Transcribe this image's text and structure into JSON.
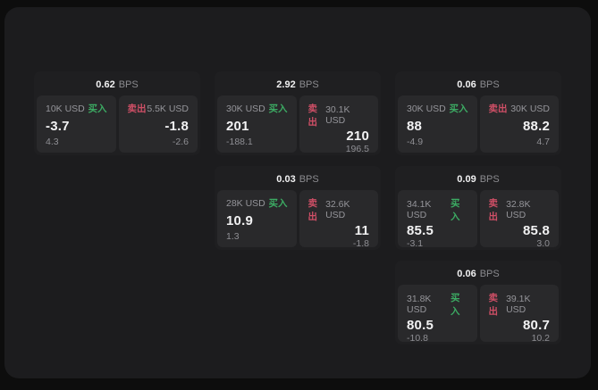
{
  "labels": {
    "bps_unit": "BPS",
    "buy": "买入",
    "sell": "卖出"
  },
  "colors": {
    "buy": "#3cab63",
    "sell": "#cf4f66",
    "surface": "#1c1c1e",
    "card": "#1f1f21",
    "panel": "#29292b"
  },
  "cards": [
    {
      "bps": "0.62",
      "buy": {
        "amount": "10K USD",
        "value": "-3.7",
        "sub": "4.3"
      },
      "sell": {
        "amount": "5.5K USD",
        "value": "-1.8",
        "sub": "-2.6"
      }
    },
    {
      "bps": "2.92",
      "buy": {
        "amount": "30K USD",
        "value": "201",
        "sub": "-188.1"
      },
      "sell": {
        "amount": "30.1K USD",
        "value": "210",
        "sub": "196.5"
      }
    },
    {
      "bps": "0.06",
      "buy": {
        "amount": "30K USD",
        "value": "88",
        "sub": "-4.9"
      },
      "sell": {
        "amount": "30K USD",
        "value": "88.2",
        "sub": "4.7"
      }
    },
    {
      "bps": "0.03",
      "buy": {
        "amount": "28K USD",
        "value": "10.9",
        "sub": "1.3"
      },
      "sell": {
        "amount": "32.6K USD",
        "value": "11",
        "sub": "-1.8"
      }
    },
    {
      "bps": "0.09",
      "buy": {
        "amount": "34.1K USD",
        "value": "85.5",
        "sub": "-3.1"
      },
      "sell": {
        "amount": "32.8K USD",
        "value": "85.8",
        "sub": "3.0"
      }
    },
    {
      "bps": "0.06",
      "buy": {
        "amount": "31.8K USD",
        "value": "80.5",
        "sub": "-10.8"
      },
      "sell": {
        "amount": "39.1K USD",
        "value": "80.7",
        "sub": "10.2"
      }
    }
  ]
}
